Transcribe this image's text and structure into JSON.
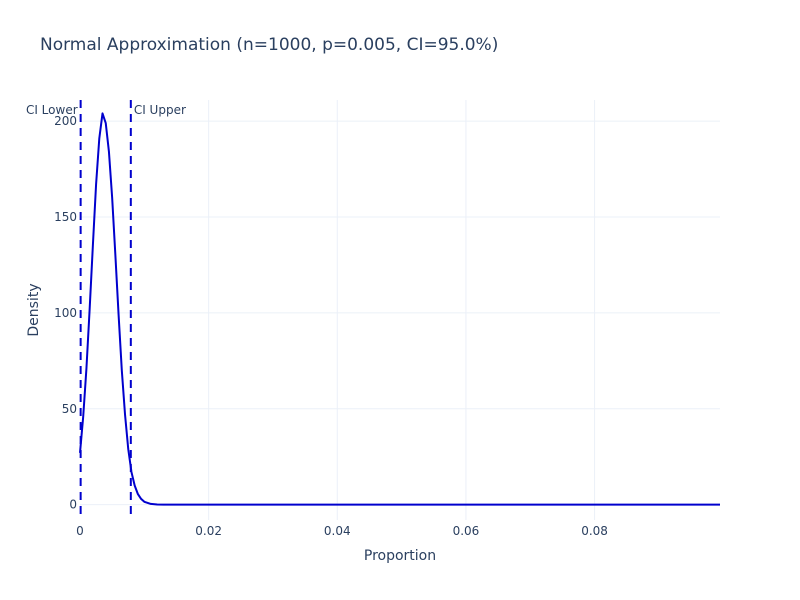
{
  "chart_data": {
    "type": "line",
    "title": "Normal Approximation (n=1000, p=0.005, CI=95.0%)",
    "xlabel": "Proportion",
    "ylabel": "Density",
    "xlim": [
      0,
      0.0995
    ],
    "ylim": [
      -8,
      211
    ],
    "x_ticks": [
      0,
      0.02,
      0.04,
      0.06,
      0.08
    ],
    "x_tick_labels": [
      "0",
      "0.02",
      "0.04",
      "0.06",
      "0.08"
    ],
    "y_ticks": [
      0,
      50,
      100,
      150,
      200
    ],
    "y_tick_labels": [
      "0",
      "50",
      "100",
      "150",
      "200"
    ],
    "grid": true,
    "series": [
      {
        "x": [
          0,
          0.0005,
          0.001,
          0.0015,
          0.002,
          0.0025,
          0.003,
          0.0035,
          0.004,
          0.0045,
          0.005,
          0.0055,
          0.006,
          0.0065,
          0.007,
          0.0075,
          0.008,
          0.0085,
          0.009,
          0.0095,
          0.01,
          0.011,
          0.012,
          0.013,
          0.015,
          0.02,
          0.03,
          0.05,
          0.07,
          0.09,
          0.0995
        ],
        "y": [
          27,
          46,
          71,
          102,
          135,
          167,
          191,
          204,
          199,
          184,
          160,
          130,
          99,
          70,
          47,
          29,
          17,
          10,
          5.5,
          3,
          1.5,
          0.4,
          0.1,
          0,
          0,
          0,
          0,
          0,
          0,
          0,
          0
        ],
        "color": "#0000cd"
      }
    ],
    "ci_lines": [
      {
        "x": 0.0001,
        "label": "CI Lower"
      },
      {
        "x": 0.0079,
        "label": "CI Upper"
      }
    ],
    "ci_color": "#0000cd"
  }
}
